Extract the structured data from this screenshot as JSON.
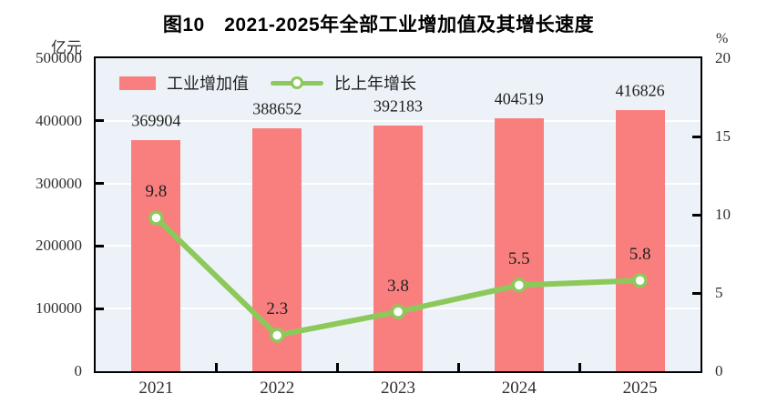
{
  "chart_data": {
    "type": "bar",
    "title": "图10　2021-2025年全部工业增加值及其增长速度",
    "categories": [
      "2021",
      "2022",
      "2023",
      "2024",
      "2025"
    ],
    "series": [
      {
        "name": "工业增加值",
        "type": "bar",
        "axis": "left",
        "color": "#F97F7F",
        "values": [
          369904,
          388652,
          392183,
          404519,
          416826
        ]
      },
      {
        "name": "比上年增长",
        "type": "line",
        "axis": "right",
        "color": "#8CC95A",
        "marker": "circle-white-fill",
        "values": [
          9.8,
          2.3,
          3.8,
          5.5,
          5.8
        ]
      }
    ],
    "left_axis": {
      "label": "亿元",
      "min": 0,
      "max": 500000,
      "tick_step": 100000,
      "tick_labels": [
        "0",
        "100000",
        "200000",
        "300000",
        "400000",
        "500000"
      ]
    },
    "right_axis": {
      "label": "%",
      "min": 0,
      "max": 20,
      "tick_step": 5,
      "tick_labels": [
        "0",
        "5",
        "10",
        "15",
        "20"
      ]
    },
    "legend": {
      "position": "top-left-inside",
      "entries": [
        "工业增加值",
        "比上年增长"
      ]
    },
    "grid": {
      "horizontal": true,
      "color": "#FFFFFF"
    },
    "plot_bg": "#ECF2F7",
    "frame_color": "#000000"
  }
}
